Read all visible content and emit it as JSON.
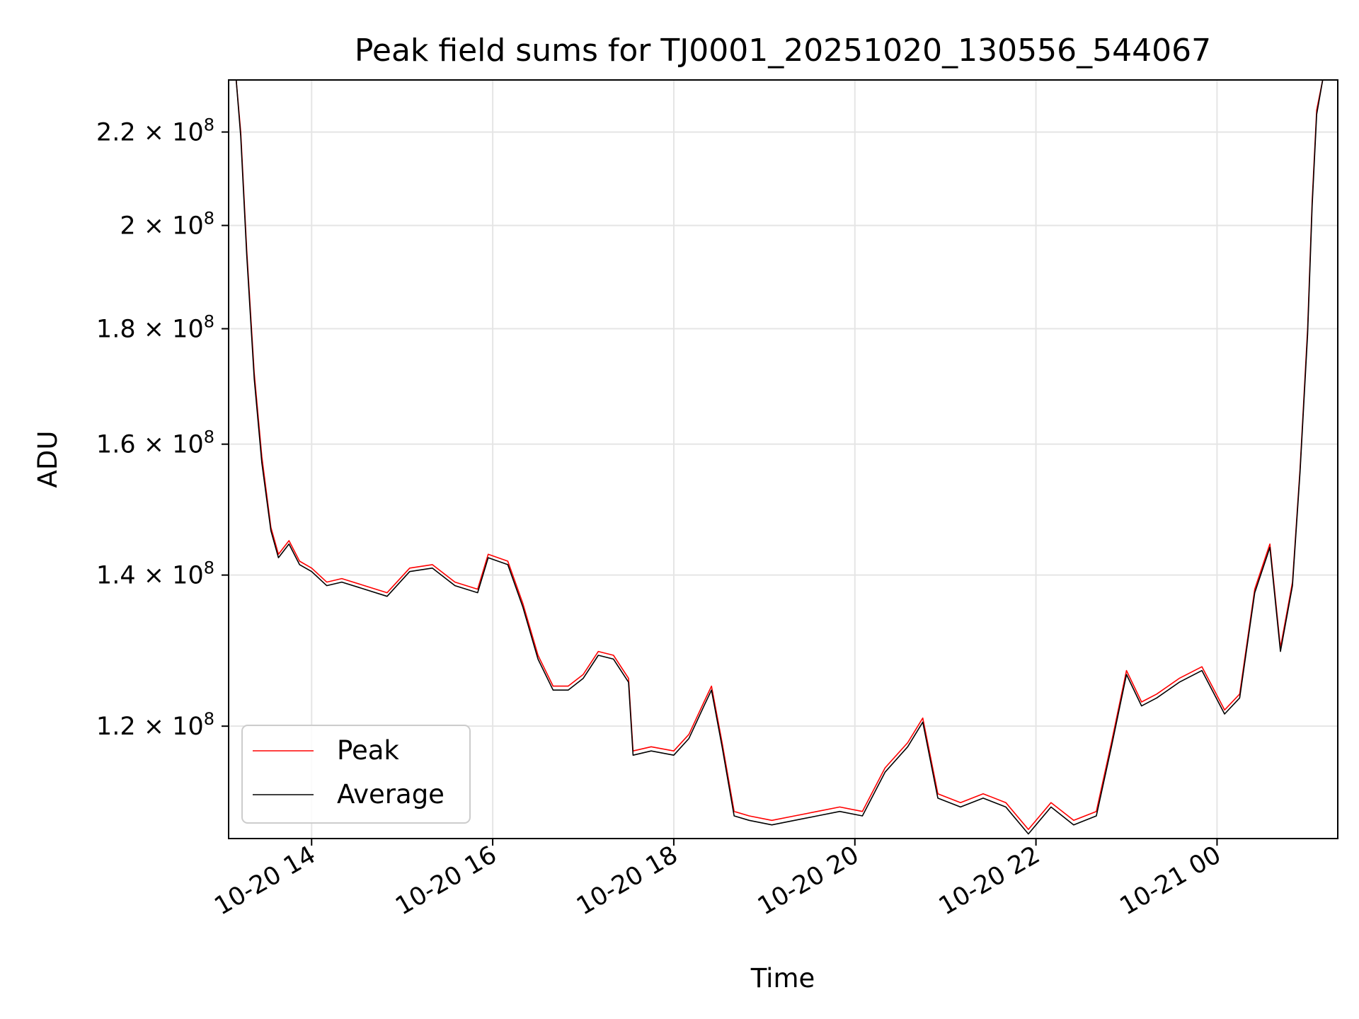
{
  "chart_data": {
    "type": "line",
    "title": "Peak field sums for TJ0001_20251020_130556_544067",
    "xlabel": "Time",
    "ylabel": "ADU",
    "y_scale": "log",
    "x_range": [
      "2025-10-20 13:05",
      "2025-10-21 01:20"
    ],
    "ylim": [
      107000000,
      232000000
    ],
    "x_ticks": [
      "10-20 14",
      "10-20 16",
      "10-20 18",
      "10-20 20",
      "10-20 22",
      "10-21 00"
    ],
    "y_ticks": [
      {
        "value": 120000000,
        "mant": "1.2",
        "exp": "8"
      },
      {
        "value": 140000000,
        "mant": "1.4",
        "exp": "8"
      },
      {
        "value": 160000000,
        "mant": "1.6",
        "exp": "8"
      },
      {
        "value": 180000000,
        "mant": "1.8",
        "exp": "8"
      },
      {
        "value": 200000000,
        "mant": "2",
        "exp": "8"
      },
      {
        "value": 220000000,
        "mant": "2.2",
        "exp": "8"
      }
    ],
    "grid": true,
    "legend_position": "lower-left",
    "series": [
      {
        "name": "Peak",
        "color": "#ff0000",
        "x": [
          "2025-10-20 13:10",
          "2025-10-20 13:13",
          "2025-10-20 13:17",
          "2025-10-20 13:22",
          "2025-10-20 13:27",
          "2025-10-20 13:33",
          "2025-10-20 13:38",
          "2025-10-20 13:45",
          "2025-10-20 13:52",
          "2025-10-20 14:00",
          "2025-10-20 14:10",
          "2025-10-20 14:20",
          "2025-10-20 14:35",
          "2025-10-20 14:50",
          "2025-10-20 15:05",
          "2025-10-20 15:20",
          "2025-10-20 15:35",
          "2025-10-20 15:50",
          "2025-10-20 15:57",
          "2025-10-20 16:10",
          "2025-10-20 16:20",
          "2025-10-20 16:30",
          "2025-10-20 16:40",
          "2025-10-20 16:50",
          "2025-10-20 17:00",
          "2025-10-20 17:10",
          "2025-10-20 17:20",
          "2025-10-20 17:30",
          "2025-10-20 17:33",
          "2025-10-20 17:45",
          "2025-10-20 18:00",
          "2025-10-20 18:10",
          "2025-10-20 18:20",
          "2025-10-20 18:25",
          "2025-10-20 18:32",
          "2025-10-20 18:40",
          "2025-10-20 18:50",
          "2025-10-20 19:05",
          "2025-10-20 19:20",
          "2025-10-20 19:35",
          "2025-10-20 19:50",
          "2025-10-20 20:05",
          "2025-10-20 20:20",
          "2025-10-20 20:35",
          "2025-10-20 20:45",
          "2025-10-20 20:55",
          "2025-10-20 21:10",
          "2025-10-20 21:25",
          "2025-10-20 21:40",
          "2025-10-20 21:55",
          "2025-10-20 22:10",
          "2025-10-20 22:25",
          "2025-10-20 22:40",
          "2025-10-20 22:50",
          "2025-10-20 23:00",
          "2025-10-20 23:10",
          "2025-10-20 23:20",
          "2025-10-20 23:35",
          "2025-10-20 23:50",
          "2025-10-21 00:05",
          "2025-10-21 00:15",
          "2025-10-21 00:25",
          "2025-10-21 00:35",
          "2025-10-21 00:42",
          "2025-10-21 00:50",
          "2025-10-21 00:55",
          "2025-10-21 01:00",
          "2025-10-21 01:03",
          "2025-10-21 01:06",
          "2025-10-21 01:10",
          "2025-10-21 01:15"
        ],
        "values": [
          232000000,
          220000000,
          195000000,
          172000000,
          158000000,
          147000000,
          143000000,
          145000000,
          142000000,
          141000000,
          139000000,
          139500000,
          138500000,
          137500000,
          141000000,
          141500000,
          139000000,
          138000000,
          143000000,
          142000000,
          136000000,
          129000000,
          125000000,
          125000000,
          126500000,
          129500000,
          129000000,
          126000000,
          117000000,
          117500000,
          117000000,
          119000000,
          123000000,
          125000000,
          118000000,
          110000000,
          109500000,
          109000000,
          109500000,
          110000000,
          110500000,
          110000000,
          115000000,
          118000000,
          121000000,
          112000000,
          111000000,
          112000000,
          111000000,
          108000000,
          111000000,
          109000000,
          110000000,
          118000000,
          127000000,
          123000000,
          124000000,
          126000000,
          127500000,
          122000000,
          124000000,
          138000000,
          144500000,
          130000000,
          139000000,
          156000000,
          180000000,
          205000000,
          225000000,
          232000000,
          232000000
        ]
      },
      {
        "name": "Average",
        "color": "#000000",
        "x": [
          "2025-10-20 13:10",
          "2025-10-20 13:13",
          "2025-10-20 13:17",
          "2025-10-20 13:22",
          "2025-10-20 13:27",
          "2025-10-20 13:33",
          "2025-10-20 13:38",
          "2025-10-20 13:45",
          "2025-10-20 13:52",
          "2025-10-20 14:00",
          "2025-10-20 14:10",
          "2025-10-20 14:20",
          "2025-10-20 14:35",
          "2025-10-20 14:50",
          "2025-10-20 15:05",
          "2025-10-20 15:20",
          "2025-10-20 15:35",
          "2025-10-20 15:50",
          "2025-10-20 15:57",
          "2025-10-20 16:10",
          "2025-10-20 16:20",
          "2025-10-20 16:30",
          "2025-10-20 16:40",
          "2025-10-20 16:50",
          "2025-10-20 17:00",
          "2025-10-20 17:10",
          "2025-10-20 17:20",
          "2025-10-20 17:30",
          "2025-10-20 17:33",
          "2025-10-20 17:45",
          "2025-10-20 18:00",
          "2025-10-20 18:10",
          "2025-10-20 18:20",
          "2025-10-20 18:25",
          "2025-10-20 18:32",
          "2025-10-20 18:40",
          "2025-10-20 18:50",
          "2025-10-20 19:05",
          "2025-10-20 19:20",
          "2025-10-20 19:35",
          "2025-10-20 19:50",
          "2025-10-20 20:05",
          "2025-10-20 20:20",
          "2025-10-20 20:35",
          "2025-10-20 20:45",
          "2025-10-20 20:55",
          "2025-10-20 21:10",
          "2025-10-20 21:25",
          "2025-10-20 21:40",
          "2025-10-20 21:55",
          "2025-10-20 22:10",
          "2025-10-20 22:25",
          "2025-10-20 22:40",
          "2025-10-20 22:50",
          "2025-10-20 23:00",
          "2025-10-20 23:10",
          "2025-10-20 23:20",
          "2025-10-20 23:35",
          "2025-10-20 23:50",
          "2025-10-21 00:05",
          "2025-10-21 00:15",
          "2025-10-21 00:25",
          "2025-10-21 00:35",
          "2025-10-21 00:42",
          "2025-10-21 00:50",
          "2025-10-21 00:55",
          "2025-10-21 01:00",
          "2025-10-21 01:03",
          "2025-10-21 01:06",
          "2025-10-21 01:10",
          "2025-10-21 01:15"
        ],
        "values": [
          232000000,
          219000000,
          194000000,
          171000000,
          157000000,
          146500000,
          142500000,
          144500000,
          141500000,
          140500000,
          138500000,
          139000000,
          138000000,
          137000000,
          140500000,
          141000000,
          138500000,
          137500000,
          142500000,
          141500000,
          135500000,
          128500000,
          124500000,
          124500000,
          126000000,
          129000000,
          128500000,
          125500000,
          116500000,
          117000000,
          116500000,
          118500000,
          122500000,
          124500000,
          117500000,
          109500000,
          109000000,
          108500000,
          109000000,
          109500000,
          110000000,
          109500000,
          114500000,
          117500000,
          120500000,
          111500000,
          110500000,
          111500000,
          110500000,
          107500000,
          110500000,
          108500000,
          109500000,
          117500000,
          126500000,
          122500000,
          123500000,
          125500000,
          127000000,
          121500000,
          123500000,
          137500000,
          144000000,
          129500000,
          138500000,
          155500000,
          179000000,
          204000000,
          224000000,
          232000000,
          232000000
        ]
      }
    ]
  }
}
